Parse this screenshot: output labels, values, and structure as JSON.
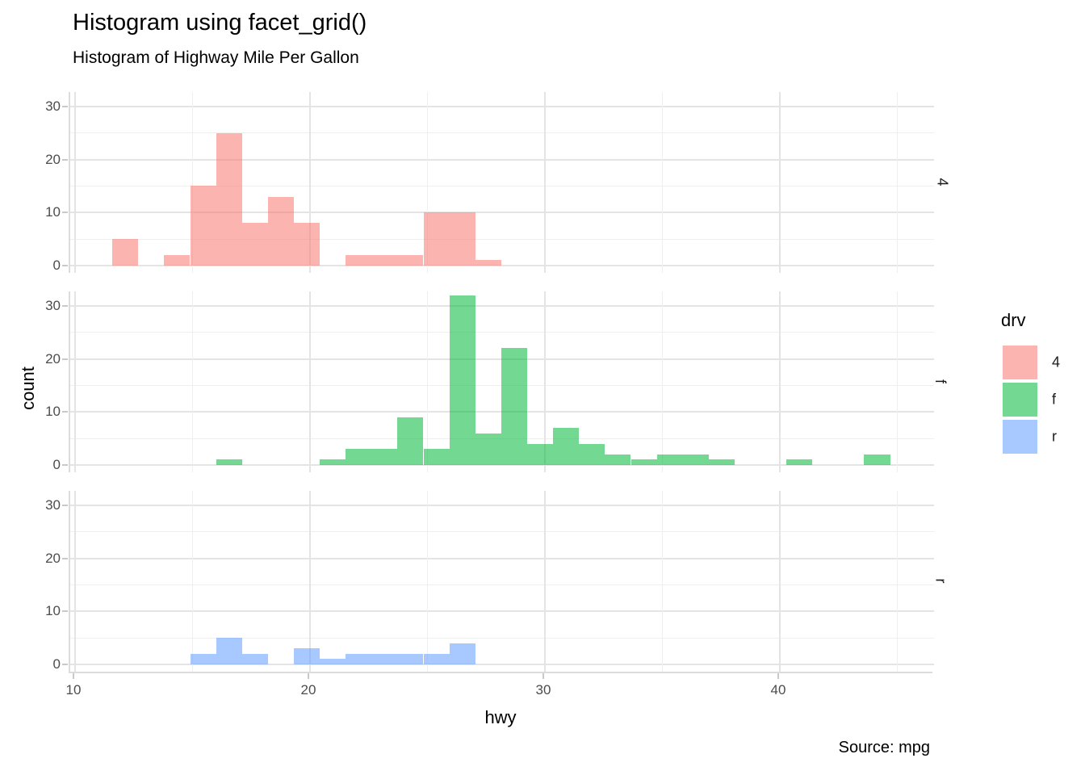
{
  "title": "Histogram using facet_grid()",
  "subtitle": "Histogram of Highway Mile Per Gallon",
  "caption": "Source: mpg",
  "x_axis": {
    "label": "hwy",
    "ticks": [
      10,
      20,
      30,
      40
    ],
    "minor_ticks": [
      15,
      25,
      35,
      45
    ],
    "range": [
      9.8,
      46.8
    ]
  },
  "y_axis": {
    "label": "count",
    "ticks": [
      0,
      10,
      20,
      30
    ],
    "minor_ticks": [
      5,
      15,
      25
    ],
    "range": [
      -1.4,
      32.7
    ]
  },
  "legend": {
    "title": "drv",
    "items": [
      {
        "label": "4",
        "color": "#F8766D"
      },
      {
        "label": "f",
        "color": "#00BA38"
      },
      {
        "label": "r",
        "color": "#619CFF"
      }
    ],
    "fill_alpha": 0.55
  },
  "colors": {
    "grid_major": "#E4E4E4",
    "grid_minor": "#EFEFEF",
    "axis_line": "#DCDCDC",
    "tick_text": "#4D4D4D"
  },
  "chart_data": {
    "type": "bar",
    "subtype": "faceted-histogram",
    "title": "Histogram using facet_grid()",
    "subtitle": "Histogram of Highway Mile Per Gallon",
    "xlabel": "hwy",
    "ylabel": "count",
    "caption": "Source: mpg",
    "xlim": [
      9.8,
      46.8
    ],
    "ylim_per_facet": [
      -1.4,
      32.7
    ],
    "grid": true,
    "legend_position": "right",
    "binwidth": 1.103,
    "facet_variable": "drv",
    "facets": [
      {
        "strip": "4",
        "color": "#F8766D",
        "bins": [
          {
            "x0": 11.59,
            "count": 5
          },
          {
            "x0": 13.79,
            "count": 2
          },
          {
            "x0": 14.9,
            "count": 15
          },
          {
            "x0": 16.0,
            "count": 25
          },
          {
            "x0": 17.1,
            "count": 8
          },
          {
            "x0": 18.21,
            "count": 13
          },
          {
            "x0": 19.31,
            "count": 8
          },
          {
            "x0": 21.52,
            "count": 2
          },
          {
            "x0": 22.62,
            "count": 2
          },
          {
            "x0": 23.72,
            "count": 2
          },
          {
            "x0": 24.83,
            "count": 10
          },
          {
            "x0": 25.93,
            "count": 10
          },
          {
            "x0": 27.03,
            "count": 1
          }
        ]
      },
      {
        "strip": "f",
        "color": "#00BA38",
        "bins": [
          {
            "x0": 16.0,
            "count": 1
          },
          {
            "x0": 20.41,
            "count": 1
          },
          {
            "x0": 21.52,
            "count": 3
          },
          {
            "x0": 22.62,
            "count": 3
          },
          {
            "x0": 23.72,
            "count": 9
          },
          {
            "x0": 24.83,
            "count": 3
          },
          {
            "x0": 25.93,
            "count": 32
          },
          {
            "x0": 27.03,
            "count": 6
          },
          {
            "x0": 28.14,
            "count": 22
          },
          {
            "x0": 29.24,
            "count": 4
          },
          {
            "x0": 30.34,
            "count": 7
          },
          {
            "x0": 31.45,
            "count": 4
          },
          {
            "x0": 32.55,
            "count": 2
          },
          {
            "x0": 33.66,
            "count": 1
          },
          {
            "x0": 34.76,
            "count": 2
          },
          {
            "x0": 35.86,
            "count": 2
          },
          {
            "x0": 36.97,
            "count": 1
          },
          {
            "x0": 40.28,
            "count": 1
          },
          {
            "x0": 43.59,
            "count": 2
          }
        ]
      },
      {
        "strip": "r",
        "color": "#619CFF",
        "bins": [
          {
            "x0": 14.9,
            "count": 2
          },
          {
            "x0": 16.0,
            "count": 5
          },
          {
            "x0": 17.1,
            "count": 2
          },
          {
            "x0": 19.31,
            "count": 3
          },
          {
            "x0": 20.41,
            "count": 1
          },
          {
            "x0": 21.52,
            "count": 2
          },
          {
            "x0": 22.62,
            "count": 2
          },
          {
            "x0": 23.72,
            "count": 2
          },
          {
            "x0": 24.83,
            "count": 2
          },
          {
            "x0": 25.93,
            "count": 4
          }
        ]
      }
    ]
  }
}
